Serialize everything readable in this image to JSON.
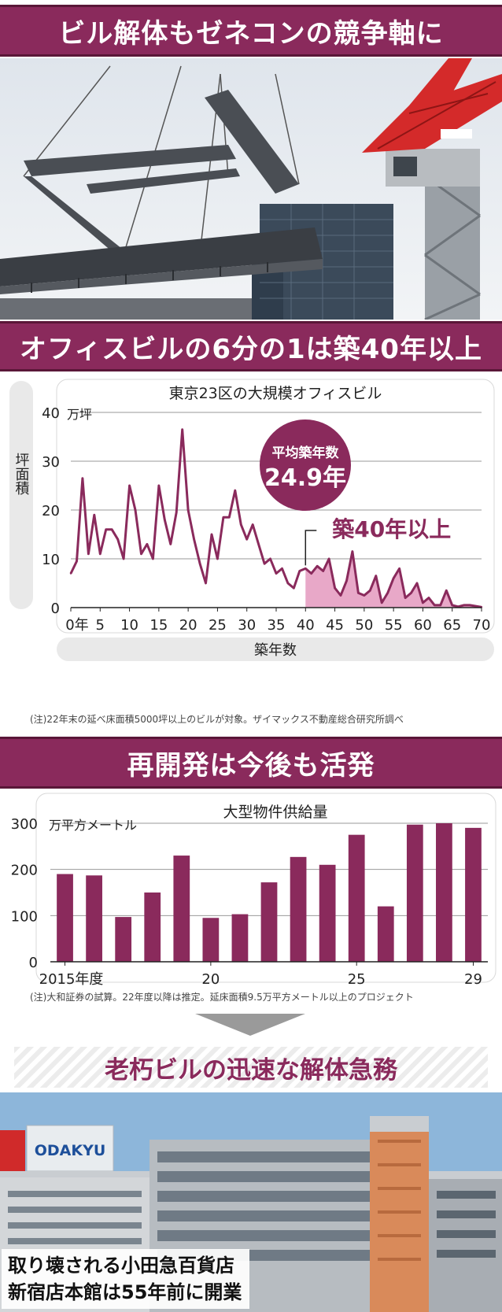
{
  "sections": {
    "headline_1": "ビル解体もゼネコンの競争軸に",
    "headline_2": "オフィスビルの6分の1は築40年以上",
    "headline_3": "再開発は今後も活発",
    "headline_4": "老朽ビルの迅速な解体急務"
  },
  "chart1": {
    "unit": "万坪",
    "note": "(注)22年末の延べ床面積5000坪以上のビルが対象。ザイマックス不動産総合研究所調べ",
    "bubble_title": "平均築年数",
    "bubble_value": "24.9年",
    "annotation": "築40年以上",
    "x_ticks": [
      "0年",
      "5",
      "10",
      "15",
      "20",
      "25",
      "30",
      "35",
      "40",
      "45",
      "50",
      "55",
      "60",
      "65",
      "70"
    ],
    "y_ticks": [
      "0",
      "10",
      "20",
      "30",
      "40"
    ]
  },
  "chart2": {
    "unit": "万平方メートル",
    "note": "(注)大和証券の試算。22年度以降は推定。延床面積9.5万平方メートル以上のプロジェクト",
    "x_ticks": [
      "2015年度",
      "20",
      "25",
      "29"
    ],
    "y_ticks": [
      "0",
      "100",
      "200",
      "300"
    ]
  },
  "photo_caption": {
    "line1": "取り壊される小田急百貨店",
    "line2": "新宿店本館は55年前に開業"
  },
  "store_sign": "ODAKYU",
  "colors": {
    "accent": "#8a2a5c",
    "accent_dark": "#5a1738",
    "fill_light": "#e8a8c8",
    "crane_red": "#d42a2a",
    "sky": "#e8edf2"
  },
  "chart_data": [
    {
      "type": "line",
      "title": "東京23区の大規模オフィスビル",
      "xlabel": "築年数",
      "ylabel": "坪面積",
      "xlim": [
        0,
        70
      ],
      "ylim": [
        0,
        40
      ],
      "grid": true,
      "x": [
        0,
        1,
        2,
        3,
        4,
        5,
        6,
        7,
        8,
        9,
        10,
        11,
        12,
        13,
        14,
        15,
        16,
        17,
        18,
        19,
        20,
        21,
        22,
        23,
        24,
        25,
        26,
        27,
        28,
        29,
        30,
        31,
        32,
        33,
        34,
        35,
        36,
        37,
        38,
        39,
        40,
        41,
        42,
        43,
        44,
        45,
        46,
        47,
        48,
        49,
        50,
        51,
        52,
        53,
        54,
        55,
        56,
        57,
        58,
        59,
        60,
        61,
        62,
        63,
        64,
        65,
        66,
        67,
        68,
        69,
        70
      ],
      "values": [
        7,
        9.5,
        26.5,
        11,
        19,
        11,
        16,
        16,
        14,
        10,
        25,
        20,
        11,
        13,
        10,
        25,
        18,
        13,
        19.5,
        36.5,
        20,
        14,
        9,
        5,
        15,
        10,
        18.5,
        18.5,
        24,
        17,
        14,
        17,
        13,
        9,
        10,
        7,
        8,
        5,
        4,
        7.5,
        8,
        7,
        8.5,
        7.5,
        10,
        4,
        2.5,
        5.5,
        11.5,
        3,
        2.5,
        3.5,
        6.5,
        1,
        3,
        6,
        8,
        2,
        3,
        5,
        1,
        2,
        0.5,
        0.5,
        3.5,
        0.5,
        0.2,
        0.5,
        0.5,
        0.3,
        0.1
      ],
      "highlight": {
        "from": 40,
        "label": "築40年以上"
      }
    },
    {
      "type": "bar",
      "title": "大型物件供給量",
      "categories": [
        "2015",
        "16",
        "17",
        "18",
        "19",
        "20",
        "21",
        "22",
        "23",
        "24",
        "25",
        "26",
        "27",
        "28",
        "29"
      ],
      "values": [
        190,
        187,
        97,
        150,
        230,
        95,
        103,
        172,
        227,
        210,
        275,
        120,
        297,
        300,
        290
      ],
      "ylim": [
        0,
        300
      ],
      "grid": true
    }
  ]
}
